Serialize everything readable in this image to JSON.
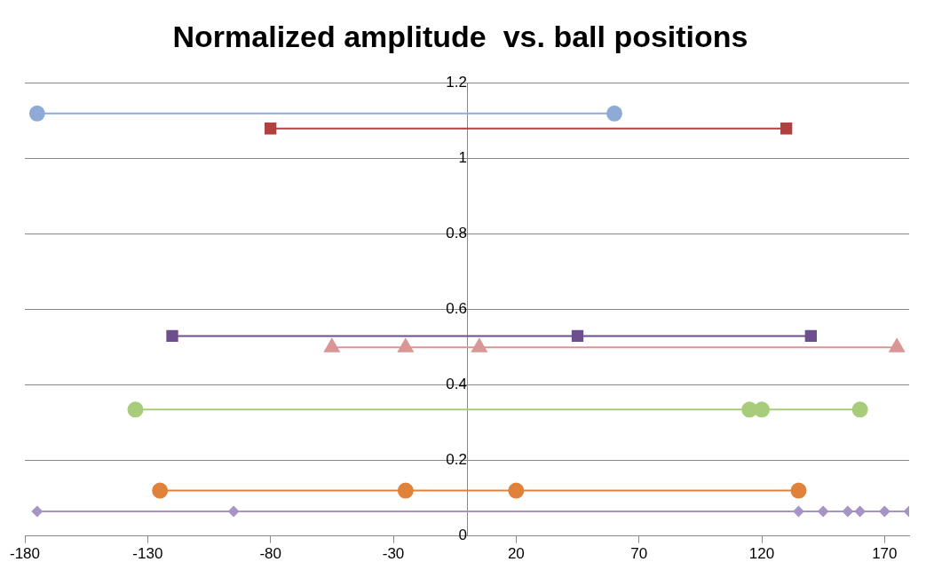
{
  "chart_data": {
    "type": "line",
    "title": "Normalized amplitude  vs. ball positions",
    "xlim": [
      -180,
      180
    ],
    "xticks": [
      -180,
      -130,
      -80,
      -30,
      20,
      70,
      120,
      170
    ],
    "ylim": [
      0,
      1.2
    ],
    "yticks": [
      0,
      0.2,
      0.4,
      0.6,
      0.8,
      1,
      1.2
    ],
    "grid": "y",
    "legend": false,
    "series": [
      {
        "color": "#8eaad6",
        "marker": "circle",
        "x": [
          -175,
          60
        ],
        "values": [
          1.12,
          1.12
        ]
      },
      {
        "color": "#b0413e",
        "marker": "square",
        "x": [
          -80,
          130
        ],
        "values": [
          1.08,
          1.08
        ]
      },
      {
        "color": "#6d4e8e",
        "marker": "square",
        "x": [
          -120,
          45,
          140
        ],
        "values": [
          0.53,
          0.53,
          0.53
        ]
      },
      {
        "color": "#d99694",
        "marker": "triangle",
        "x": [
          -55,
          -25,
          5,
          175
        ],
        "values": [
          0.5,
          0.5,
          0.5,
          0.5
        ]
      },
      {
        "color": "#a8cc7a",
        "marker": "circle",
        "x": [
          -135,
          115,
          120,
          160
        ],
        "values": [
          0.335,
          0.335,
          0.335,
          0.335
        ]
      },
      {
        "color": "#e0823a",
        "marker": "circle",
        "x": [
          -125,
          -25,
          20,
          135
        ],
        "values": [
          0.12,
          0.12,
          0.12,
          0.12
        ]
      },
      {
        "color": "#a594c4",
        "marker": "diamond",
        "x": [
          -175,
          -95,
          135,
          145,
          155,
          160,
          170,
          180
        ],
        "values": [
          0.065,
          0.065,
          0.065,
          0.065,
          0.065,
          0.065,
          0.065,
          0.065
        ]
      }
    ]
  }
}
